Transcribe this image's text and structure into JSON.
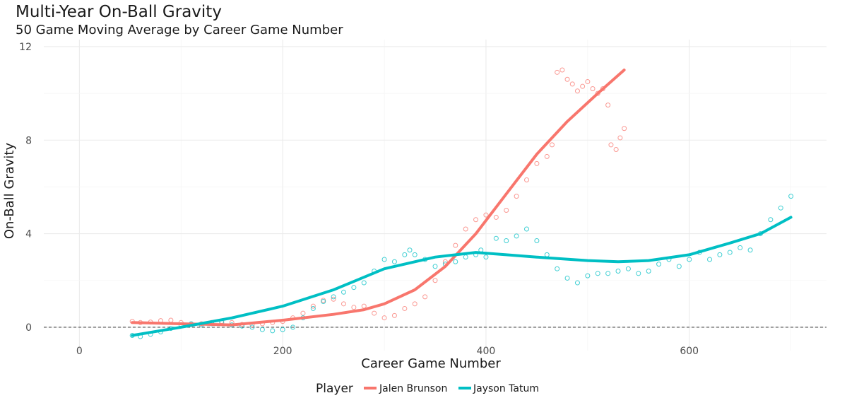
{
  "colors": {
    "jalen_brunson": "#F8766D",
    "jayson_tatum": "#00BFC4",
    "grid_major": "#ebebeb",
    "grid_minor": "#f5f5f5",
    "reference_line": "#4d4d4d"
  },
  "chart_data": {
    "type": "scatter",
    "title": "Multi-Year On-Ball Gravity",
    "subtitle": "50 Game Moving Average by Career Game Number",
    "xlabel": "Career Game Number",
    "ylabel": "On-Ball Gravity",
    "xlim": [
      -35,
      735
    ],
    "ylim": [
      -1.0,
      12.3
    ],
    "x_ticks": [
      0,
      200,
      400,
      600
    ],
    "x_tick_labels": [
      "0",
      "200",
      "400",
      "600"
    ],
    "y_ticks": [
      0,
      4,
      8,
      12
    ],
    "y_tick_labels": [
      "0",
      "4",
      "8",
      "12"
    ],
    "grid": true,
    "reference_line_y": 0,
    "legend": {
      "title": "Player",
      "position": "bottom",
      "entries": [
        "Jalen Brunson",
        "Jayson Tatum"
      ]
    },
    "series": [
      {
        "name": "Jalen Brunson",
        "color_key": "jalen_brunson",
        "points": [
          [
            52,
            0.25
          ],
          [
            60,
            0.2
          ],
          [
            70,
            0.22
          ],
          [
            80,
            0.28
          ],
          [
            90,
            0.3
          ],
          [
            100,
            0.2
          ],
          [
            110,
            0.12
          ],
          [
            120,
            0.15
          ],
          [
            130,
            0.2
          ],
          [
            140,
            0.25
          ],
          [
            150,
            0.2
          ],
          [
            160,
            0.12
          ],
          [
            170,
            0.1
          ],
          [
            180,
            0.15
          ],
          [
            190,
            0.2
          ],
          [
            200,
            0.25
          ],
          [
            210,
            0.4
          ],
          [
            220,
            0.6
          ],
          [
            230,
            0.9
          ],
          [
            240,
            1.15
          ],
          [
            250,
            1.2
          ],
          [
            260,
            1.0
          ],
          [
            270,
            0.85
          ],
          [
            280,
            0.9
          ],
          [
            290,
            0.6
          ],
          [
            300,
            0.4
          ],
          [
            310,
            0.5
          ],
          [
            320,
            0.8
          ],
          [
            330,
            1.0
          ],
          [
            340,
            1.3
          ],
          [
            350,
            2.0
          ],
          [
            360,
            2.8
          ],
          [
            370,
            3.5
          ],
          [
            380,
            4.2
          ],
          [
            390,
            4.6
          ],
          [
            400,
            4.8
          ],
          [
            410,
            4.7
          ],
          [
            420,
            5.0
          ],
          [
            430,
            5.6
          ],
          [
            440,
            6.3
          ],
          [
            450,
            7.0
          ],
          [
            460,
            7.3
          ],
          [
            465,
            7.8
          ],
          [
            470,
            10.9
          ],
          [
            475,
            11.0
          ],
          [
            480,
            10.6
          ],
          [
            485,
            10.4
          ],
          [
            490,
            10.1
          ],
          [
            495,
            10.3
          ],
          [
            500,
            10.5
          ],
          [
            505,
            10.2
          ],
          [
            510,
            10.0
          ],
          [
            515,
            10.2
          ],
          [
            520,
            9.5
          ],
          [
            523,
            7.8
          ],
          [
            528,
            7.6
          ],
          [
            532,
            8.1
          ],
          [
            536,
            8.5
          ]
        ],
        "trend": [
          [
            52,
            0.2
          ],
          [
            100,
            0.15
          ],
          [
            150,
            0.1
          ],
          [
            200,
            0.3
          ],
          [
            250,
            0.55
          ],
          [
            280,
            0.75
          ],
          [
            300,
            1.0
          ],
          [
            330,
            1.6
          ],
          [
            360,
            2.6
          ],
          [
            390,
            4.0
          ],
          [
            420,
            5.7
          ],
          [
            450,
            7.4
          ],
          [
            480,
            8.8
          ],
          [
            510,
            10.0
          ],
          [
            536,
            11.0
          ]
        ]
      },
      {
        "name": "Jayson Tatum",
        "color_key": "jayson_tatum",
        "points": [
          [
            52,
            -0.35
          ],
          [
            60,
            -0.4
          ],
          [
            70,
            -0.3
          ],
          [
            80,
            -0.2
          ],
          [
            90,
            -0.05
          ],
          [
            100,
            0.1
          ],
          [
            110,
            0.15
          ],
          [
            120,
            0.1
          ],
          [
            130,
            0.15
          ],
          [
            140,
            0.2
          ],
          [
            150,
            0.1
          ],
          [
            160,
            0.05
          ],
          [
            170,
            0.0
          ],
          [
            180,
            -0.1
          ],
          [
            190,
            -0.15
          ],
          [
            200,
            -0.1
          ],
          [
            210,
            0.0
          ],
          [
            220,
            0.4
          ],
          [
            230,
            0.8
          ],
          [
            240,
            1.1
          ],
          [
            250,
            1.3
          ],
          [
            260,
            1.5
          ],
          [
            270,
            1.7
          ],
          [
            280,
            1.9
          ],
          [
            290,
            2.4
          ],
          [
            300,
            2.9
          ],
          [
            310,
            2.8
          ],
          [
            320,
            3.1
          ],
          [
            325,
            3.3
          ],
          [
            330,
            3.1
          ],
          [
            340,
            2.9
          ],
          [
            350,
            2.6
          ],
          [
            360,
            2.7
          ],
          [
            370,
            2.8
          ],
          [
            380,
            3.0
          ],
          [
            390,
            3.1
          ],
          [
            395,
            3.3
          ],
          [
            400,
            3.0
          ],
          [
            410,
            3.8
          ],
          [
            420,
            3.7
          ],
          [
            430,
            3.9
          ],
          [
            440,
            4.2
          ],
          [
            450,
            3.7
          ],
          [
            460,
            3.1
          ],
          [
            470,
            2.5
          ],
          [
            480,
            2.1
          ],
          [
            490,
            1.9
          ],
          [
            500,
            2.2
          ],
          [
            510,
            2.3
          ],
          [
            520,
            2.3
          ],
          [
            530,
            2.4
          ],
          [
            540,
            2.5
          ],
          [
            550,
            2.3
          ],
          [
            560,
            2.4
          ],
          [
            570,
            2.7
          ],
          [
            580,
            2.9
          ],
          [
            590,
            2.6
          ],
          [
            600,
            2.9
          ],
          [
            610,
            3.2
          ],
          [
            620,
            2.9
          ],
          [
            630,
            3.1
          ],
          [
            640,
            3.2
          ],
          [
            650,
            3.4
          ],
          [
            660,
            3.3
          ],
          [
            670,
            4.0
          ],
          [
            680,
            4.6
          ],
          [
            690,
            5.1
          ],
          [
            700,
            5.6
          ]
        ],
        "trend": [
          [
            52,
            -0.35
          ],
          [
            100,
            0.0
          ],
          [
            150,
            0.4
          ],
          [
            200,
            0.9
          ],
          [
            250,
            1.6
          ],
          [
            300,
            2.5
          ],
          [
            350,
            3.0
          ],
          [
            390,
            3.2
          ],
          [
            420,
            3.1
          ],
          [
            450,
            3.0
          ],
          [
            500,
            2.85
          ],
          [
            530,
            2.8
          ],
          [
            560,
            2.85
          ],
          [
            600,
            3.1
          ],
          [
            640,
            3.6
          ],
          [
            670,
            4.0
          ],
          [
            700,
            4.7
          ]
        ]
      }
    ]
  }
}
